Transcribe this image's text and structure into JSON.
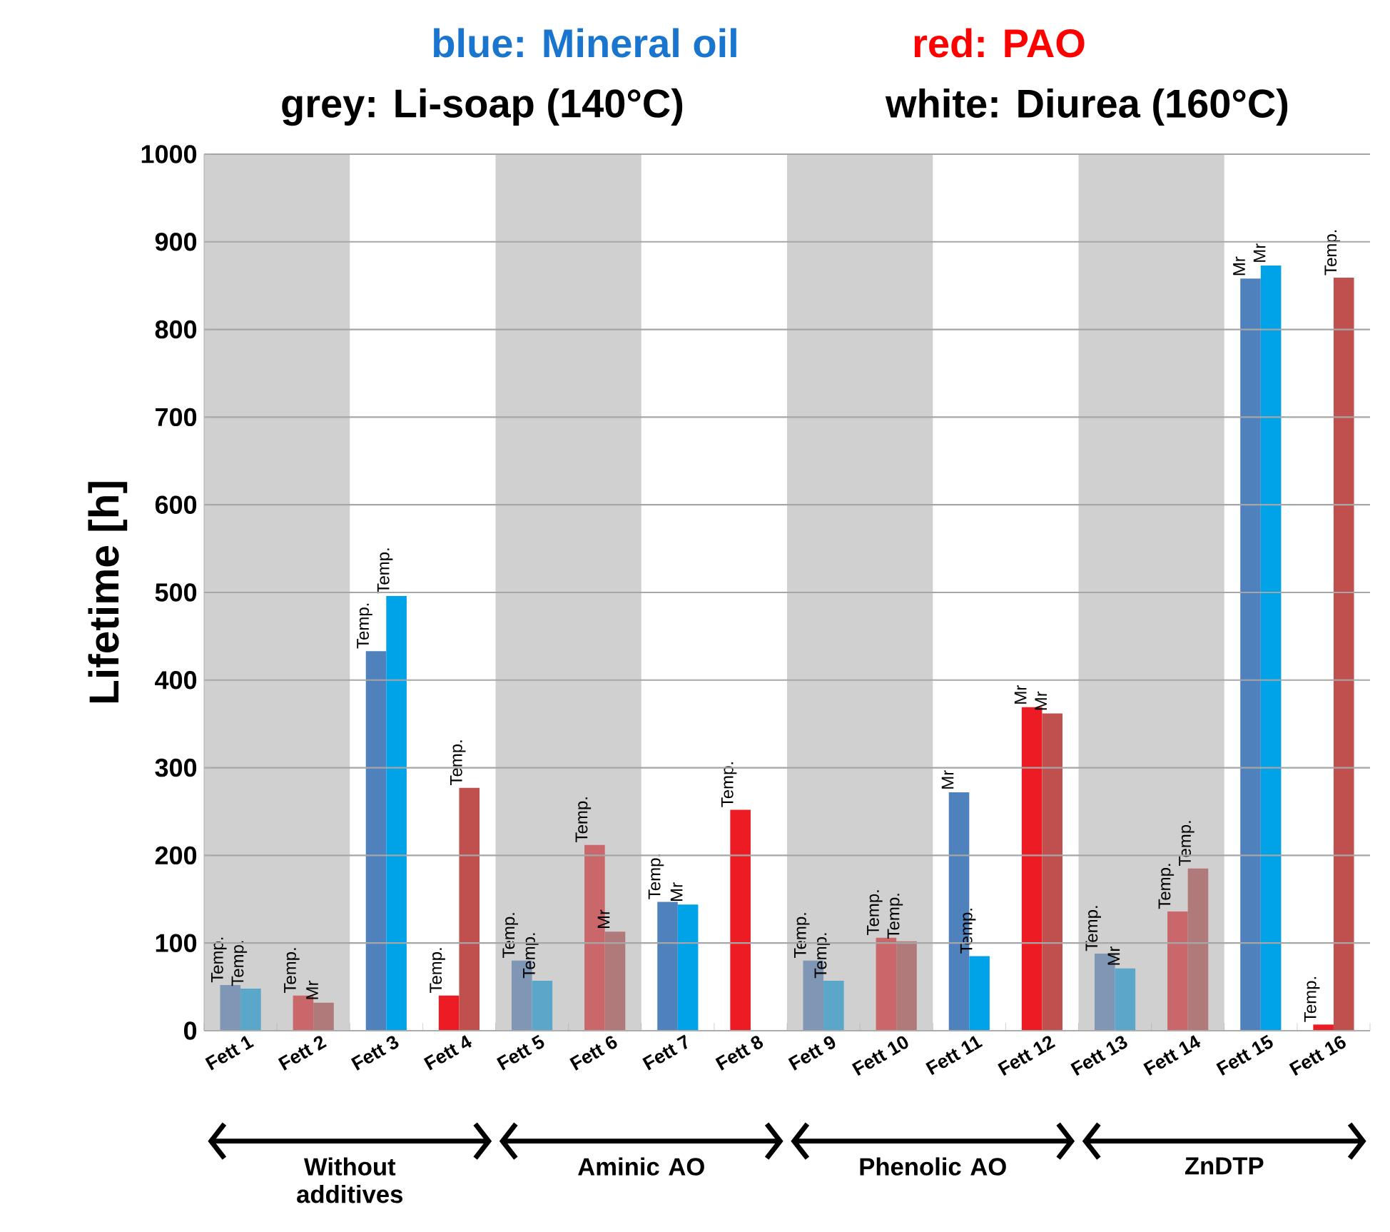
{
  "chart_data": {
    "type": "bar",
    "ylabel": "Lifetime [h]",
    "categories": [
      "Fett 1",
      "Fett 2",
      "Fett 3",
      "Fett 4",
      "Fett 5",
      "Fett 6",
      "Fett 7",
      "Fett 8",
      "Fett 9",
      "Fett 10",
      "Fett 11",
      "Fett 12",
      "Fett 13",
      "Fett 14",
      "Fett 15",
      "Fett 16"
    ],
    "series": [
      {
        "values": [
          52,
          40,
          433,
          40,
          80,
          212,
          147,
          252,
          80,
          106,
          272,
          369,
          88,
          136,
          858,
          7
        ],
        "colors": [
          "#7f96b4",
          "#c9676b",
          "#4f81bd",
          "#ed1c24",
          "#7f96b4",
          "#c9676b",
          "#4f81bd",
          "#ed1c24",
          "#7f96b4",
          "#c9676b",
          "#4f81bd",
          "#ed1c24",
          "#7f96b4",
          "#c9676b",
          "#4f81bd",
          "#ed1c24"
        ],
        "value_labels": [
          "Temp.",
          "Temp.",
          "Temp.",
          "Temp.",
          "Temp.",
          "Temp.",
          "Temp.",
          "Temp.",
          "Temp.",
          "Temp.",
          "Mr",
          "Mr",
          "Temp.",
          "Temp.",
          "Mr",
          "Temp."
        ]
      },
      {
        "values": [
          48,
          32,
          496,
          277,
          57,
          113,
          144,
          null,
          57,
          102,
          85,
          362,
          71,
          185,
          873,
          859
        ],
        "colors": [
          "#5aa7c9",
          "#b07a7a",
          "#00a2e8",
          "#c0504d",
          "#5aa7c9",
          "#b07a7a",
          "#00a2e8",
          "#c0504d",
          "#5aa7c9",
          "#b07a7a",
          "#00a2e8",
          "#c0504d",
          "#5aa7c9",
          "#b07a7a",
          "#00a2e8",
          "#c0504d"
        ],
        "value_labels": [
          "Temp.",
          "Mr",
          "Temp.",
          "Temp.",
          "Temp.",
          "Mr",
          "Mr",
          null,
          "Temp.",
          "Temp.",
          "Temp.",
          "Mr",
          "Mr",
          "Temp.",
          "Mr",
          "Temp."
        ]
      }
    ],
    "ylim": [
      0,
      1000
    ],
    "yticks": [
      0,
      100,
      200,
      300,
      400,
      500,
      600,
      700,
      800,
      900,
      1000
    ],
    "grid": "y",
    "bands": [
      {
        "axis": "x",
        "from": "Fett 1",
        "to": "Fett 2",
        "color": "#d0d0d0"
      },
      {
        "axis": "x",
        "from": "Fett 5",
        "to": "Fett 6",
        "color": "#d0d0d0"
      },
      {
        "axis": "x",
        "from": "Fett 9",
        "to": "Fett 10",
        "color": "#d0d0d0"
      },
      {
        "axis": "x",
        "from": "Fett 13",
        "to": "Fett 14",
        "color": "#d0d0d0"
      }
    ],
    "annotations": [
      "blue: Mineral oil",
      "red: PAO",
      "grey: Li-soap (140°C)",
      "white: Diurea (160°C)",
      "Without additives",
      "Aminic AO",
      "Phenolic AO",
      "ZnDTP"
    ]
  }
}
